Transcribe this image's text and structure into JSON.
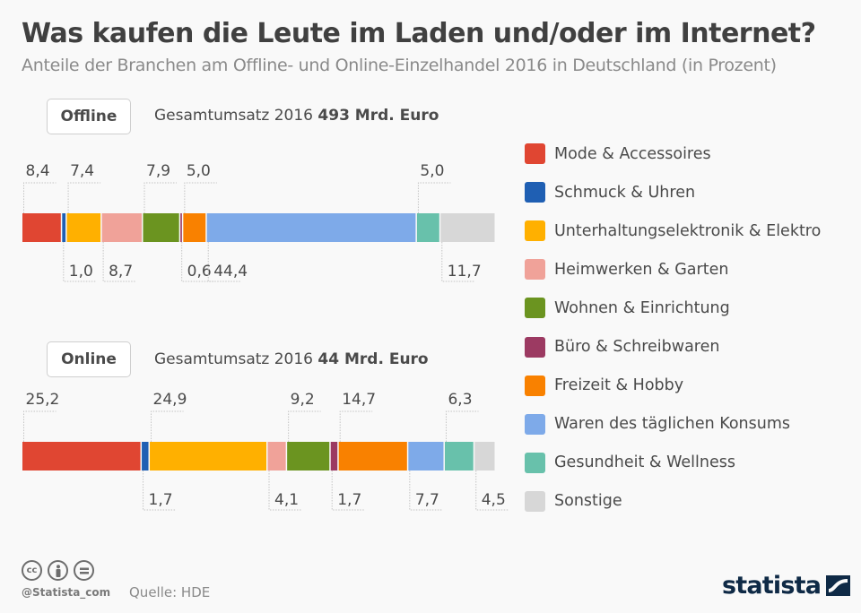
{
  "title": "Was kaufen die Leute im Laden und/oder im Internet?",
  "subtitle": "Anteile der Branchen am Offline- und Online-Einzelhandel 2016 in Deutschland (in Prozent)",
  "panels": [
    {
      "badge": "Offline",
      "total_prefix": "Gesamtumsatz 2016",
      "total_value": "493 Mrd. Euro"
    },
    {
      "badge": "Online",
      "total_prefix": "Gesamtumsatz 2016",
      "total_value": "44 Mrd. Euro"
    }
  ],
  "footer": {
    "handle": "@Statista_com",
    "source": "Quelle: HDE",
    "logo": "statista",
    "license_icons": [
      "cc-icon",
      "attribution-icon",
      "no-derivatives-icon"
    ]
  },
  "chart_data": {
    "type": "bar",
    "orientation": "horizontal-stacked",
    "title": "Was kaufen die Leute im Laden und/oder im Internet?",
    "subtitle": "Anteile der Branchen am Offline- und Online-Einzelhandel 2016 in Deutschland (in Prozent)",
    "unit": "%",
    "legend_position": "right",
    "categories": [
      {
        "name": "Mode & Accessoires",
        "color": "#e04632"
      },
      {
        "name": "Schmuck & Uhren",
        "color": "#1f5fb3"
      },
      {
        "name": "Unterhaltungselektronik & Elektro",
        "color": "#ffb000"
      },
      {
        "name": "Heimwerken & Garten",
        "color": "#f0a299"
      },
      {
        "name": "Wohnen & Einrichtung",
        "color": "#6b9420"
      },
      {
        "name": "Büro & Schreibwaren",
        "color": "#9c3a62"
      },
      {
        "name": "Freizeit & Hobby",
        "color": "#f98100"
      },
      {
        "name": "Waren des täglichen Konsums",
        "color": "#7eaae9"
      },
      {
        "name": "Gesundheit & Wellness",
        "color": "#68c1ab"
      },
      {
        "name": "Sonstige",
        "color": "#d7d7d7"
      }
    ],
    "series": [
      {
        "name": "Offline",
        "values": [
          8.4,
          1.0,
          7.4,
          8.7,
          7.9,
          0.6,
          5.0,
          44.4,
          5.0,
          11.7
        ],
        "labels": [
          "8,4",
          "1,0",
          "7,4",
          "8,7",
          "7,9",
          "0,6",
          "5,0",
          "44,4",
          "5,0",
          "11,7"
        ],
        "label_side": [
          "top",
          "bottom",
          "top",
          "bottom",
          "top",
          "bottom",
          "top",
          "bottom",
          "top",
          "bottom"
        ]
      },
      {
        "name": "Online",
        "values": [
          25.2,
          1.7,
          24.9,
          4.1,
          9.2,
          1.7,
          14.7,
          7.7,
          6.3,
          4.5
        ],
        "labels": [
          "25,2",
          "1,7",
          "24,9",
          "4,1",
          "9,2",
          "1,7",
          "14,7",
          "7,7",
          "6,3",
          "4,5"
        ],
        "label_side": [
          "top",
          "bottom",
          "top",
          "bottom",
          "top",
          "bottom",
          "top",
          "bottom",
          "top",
          "bottom"
        ]
      }
    ]
  }
}
